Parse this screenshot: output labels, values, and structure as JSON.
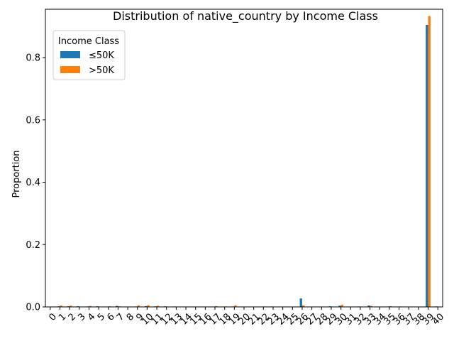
{
  "chart_data": {
    "type": "bar",
    "title": "Distribution of native_country by Income Class",
    "xlabel": "",
    "ylabel": "Proportion",
    "ylim": [
      0,
      0.955
    ],
    "yticks": [
      "0.0",
      "0.2",
      "0.4",
      "0.6",
      "0.8"
    ],
    "ytick_values": [
      0,
      0.2,
      0.4,
      0.6,
      0.8
    ],
    "categories": [
      "0",
      "1",
      "2",
      "3",
      "4",
      "5",
      "6",
      "7",
      "8",
      "9",
      "10",
      "11",
      "12",
      "13",
      "14",
      "15",
      "16",
      "17",
      "18",
      "19",
      "20",
      "21",
      "22",
      "23",
      "24",
      "25",
      "26",
      "27",
      "28",
      "29",
      "30",
      "31",
      "32",
      "33",
      "34",
      "35",
      "36",
      "37",
      "38",
      "39",
      "40"
    ],
    "legend": {
      "title": "Income Class",
      "position": "upper-left"
    },
    "series": [
      {
        "name": "≤50K",
        "color": "#1f77b4",
        "values": [
          0.0005,
          0.002,
          0.0022,
          0.002,
          0.0015,
          0.002,
          0.0008,
          0.0032,
          0.001,
          0.0015,
          0.0025,
          0.0018,
          0.0018,
          0.0014,
          0.0003,
          0.0005,
          0.0002,
          0.0005,
          0.0005,
          0.0015,
          0.0012,
          0.001,
          0.0009,
          0.0015,
          0.001,
          0.0005,
          0.027,
          0.001,
          0.0005,
          0.002,
          0.004,
          0.0011,
          0.0015,
          0.0044,
          0.0003,
          0.0015,
          0.0008,
          0.0008,
          0.0005,
          0.905,
          0.0015
        ]
      },
      {
        "name": ">50K",
        "color": "#ff7f0e",
        "values": [
          0.0005,
          0.0045,
          0.004,
          0.001,
          0.003,
          0.0005,
          0.002,
          0.002,
          0.0005,
          0.005,
          0.0055,
          0.0035,
          0.0005,
          0.0005,
          0.0005,
          0.0008,
          0.0005,
          0.0025,
          0.0015,
          0.005,
          0.001,
          0.001,
          0.0015,
          0.0005,
          0.001,
          0.0005,
          0.005,
          0.0005,
          0.0005,
          0.0005,
          0.007,
          0.001,
          0.0005,
          0.003,
          0.0005,
          0.0025,
          0.0015,
          0.0005,
          0.0005,
          0.933,
          0.001
        ]
      }
    ]
  }
}
